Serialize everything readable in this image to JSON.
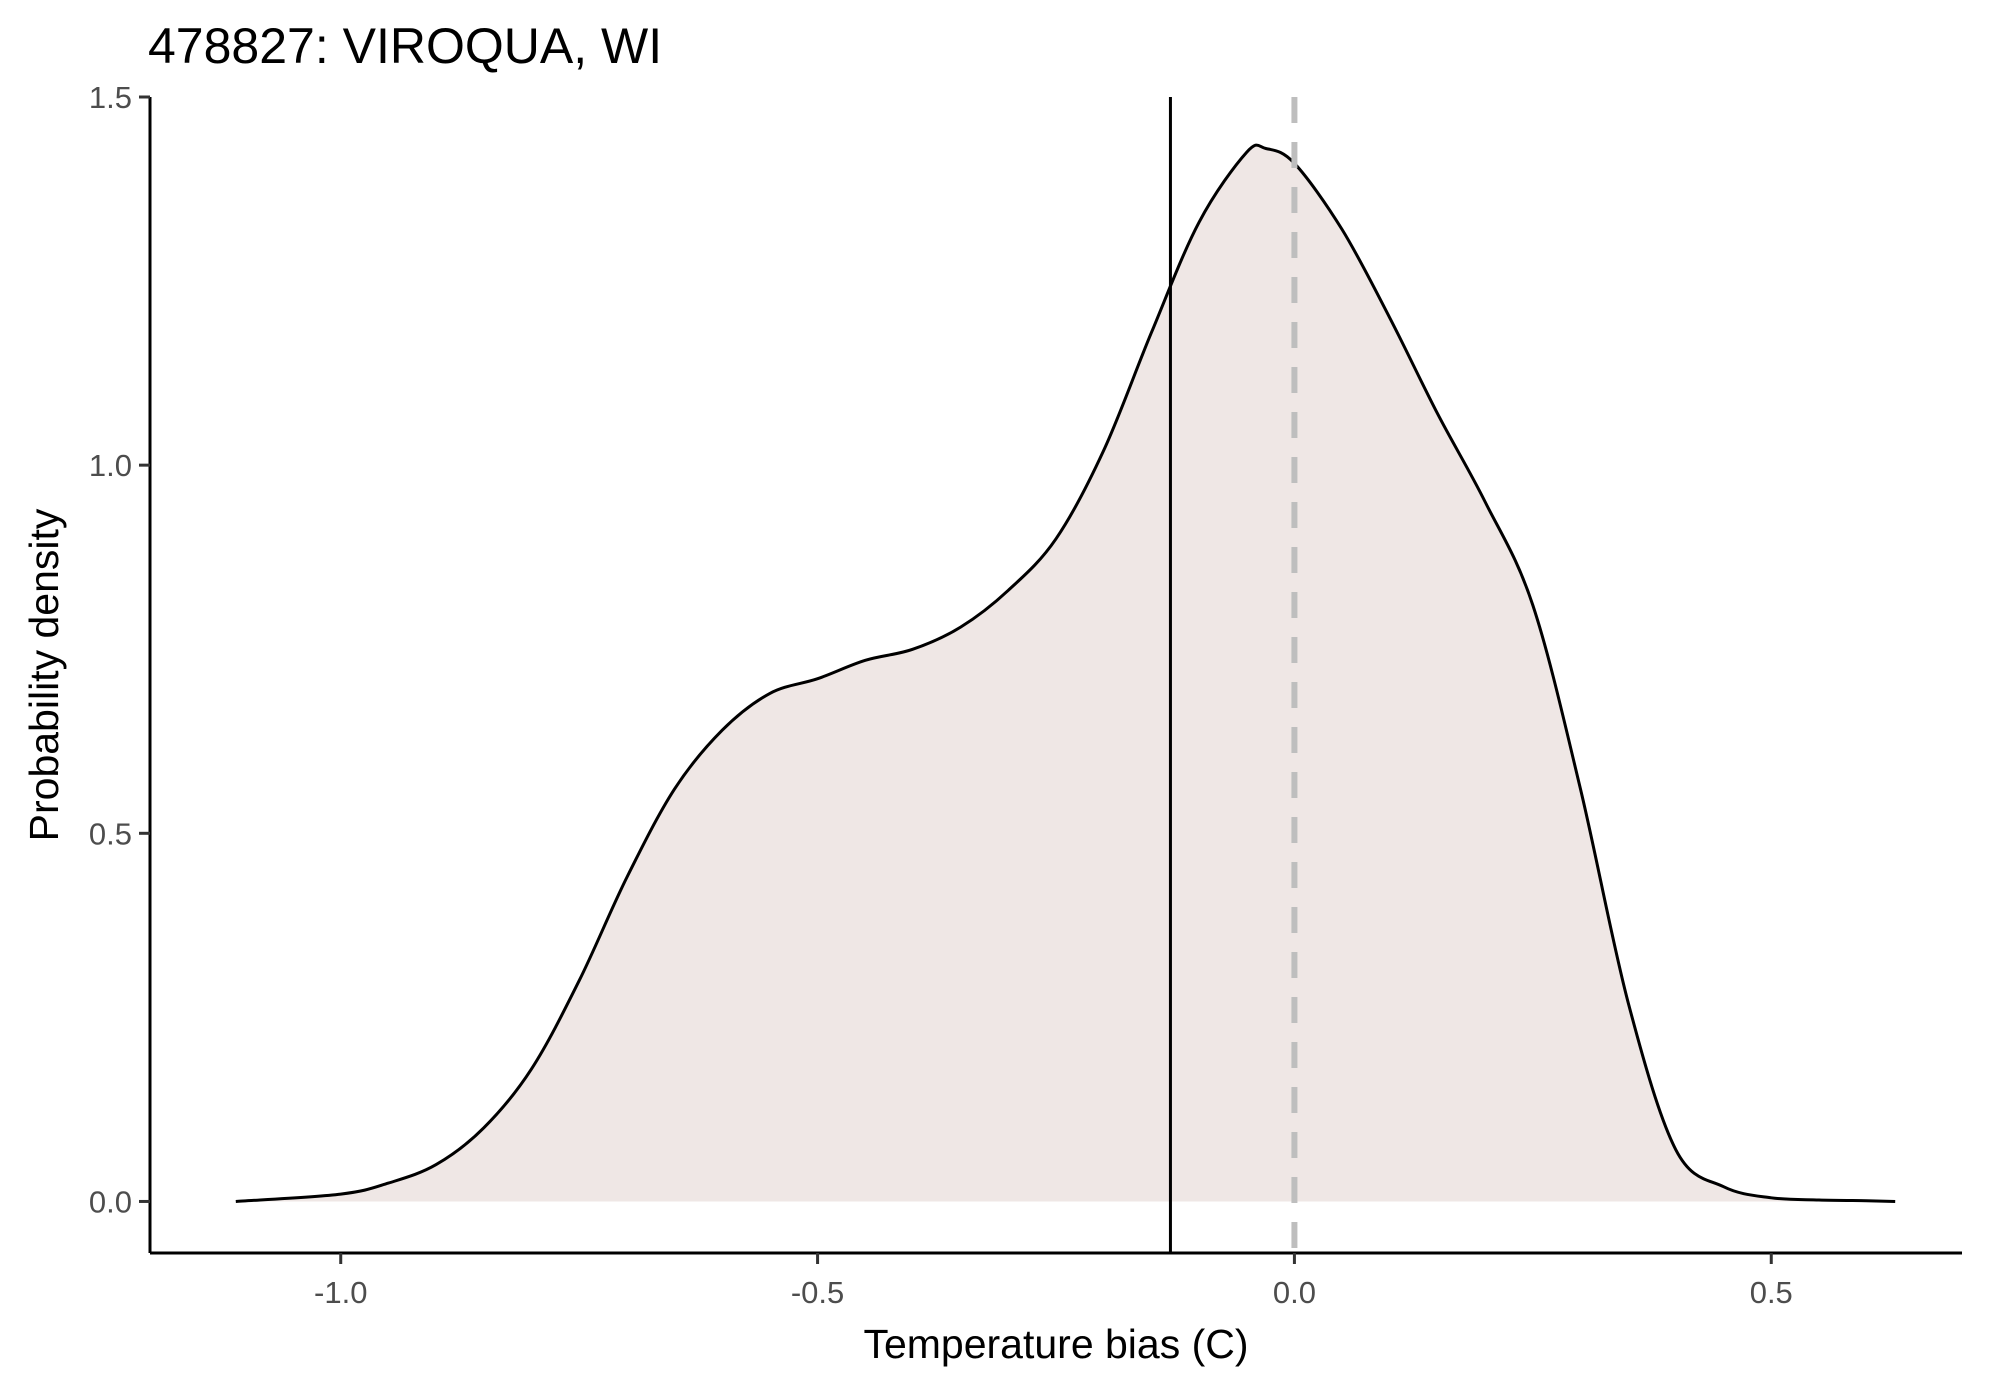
{
  "chart_data": {
    "type": "area",
    "title": "478827: VIROQUA, WI",
    "xlabel": "Temperature bias (C)",
    "ylabel": "Probability density",
    "xlim": [
      -1.2,
      0.7
    ],
    "ylim": [
      -0.07,
      1.5
    ],
    "x_ticks": [
      -1.0,
      -0.5,
      0.0,
      0.5
    ],
    "x_tick_labels": [
      "-1.0",
      "-0.5",
      "0.0",
      "0.5"
    ],
    "y_ticks": [
      0.0,
      0.5,
      1.0,
      1.5
    ],
    "y_tick_labels": [
      "0.0",
      "0.5",
      "1.0",
      "1.5"
    ],
    "grid": false,
    "legend": "none",
    "series": [
      {
        "x": [
          -1.11,
          -1.0,
          -0.95,
          -0.9,
          -0.85,
          -0.8,
          -0.75,
          -0.7,
          -0.65,
          -0.6,
          -0.55,
          -0.5,
          -0.45,
          -0.4,
          -0.35,
          -0.3,
          -0.25,
          -0.2,
          -0.15,
          -0.1,
          -0.05,
          -0.03,
          0.0,
          0.05,
          0.1,
          0.15,
          0.2,
          0.25,
          0.3,
          0.35,
          0.4,
          0.45,
          0.5,
          0.55,
          0.6,
          0.63
        ],
        "y": [
          0.0,
          0.01,
          0.025,
          0.05,
          0.1,
          0.18,
          0.3,
          0.44,
          0.56,
          0.64,
          0.69,
          0.71,
          0.735,
          0.75,
          0.78,
          0.83,
          0.9,
          1.02,
          1.18,
          1.33,
          1.425,
          1.43,
          1.41,
          1.32,
          1.2,
          1.07,
          0.95,
          0.81,
          0.56,
          0.27,
          0.07,
          0.02,
          0.005,
          0.002,
          0.001,
          0.0
        ]
      }
    ],
    "vlines": [
      {
        "x": -0.13,
        "style": "solid"
      },
      {
        "x": 0.0,
        "style": "dashed"
      }
    ],
    "colors": {
      "fill": "#efe7e5",
      "curve": "#000000",
      "mean_line": "#000000",
      "zero_line": "#bebebe",
      "axis": "#000000",
      "tick_label": "#4d4d4d"
    }
  }
}
